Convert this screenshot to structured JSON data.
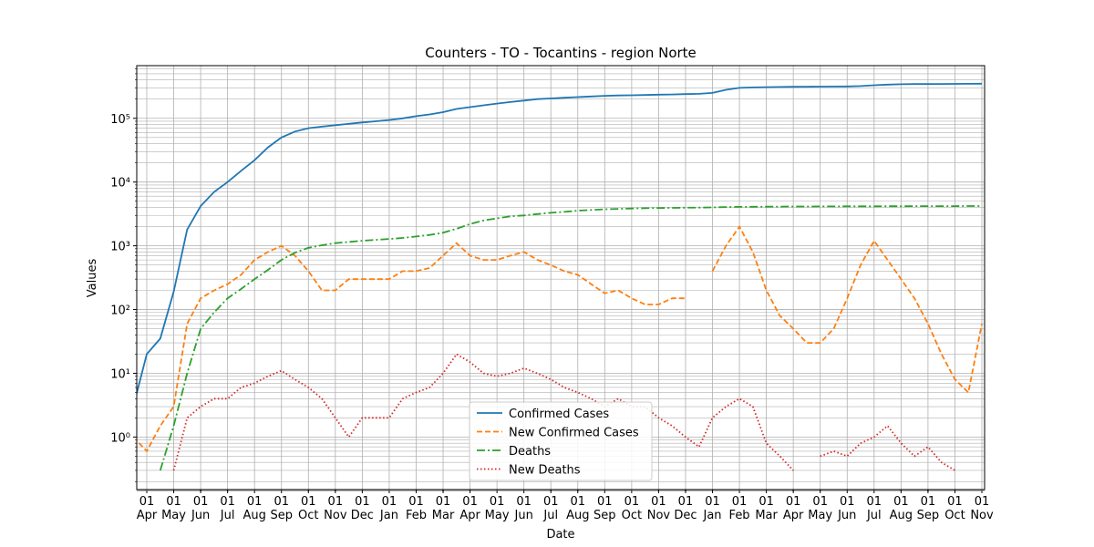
{
  "chart_data": {
    "type": "line",
    "title": "Counters - TO - Tocantins - region Norte",
    "xlabel": "Date",
    "ylabel": "Values",
    "log_y": true,
    "grid": true,
    "minor_grid": true,
    "legend": "lower center",
    "ylim": [
      0.15,
      670000
    ],
    "yticks": [
      {
        "value": 1,
        "label": "10⁰"
      },
      {
        "value": 10,
        "label": "10¹"
      },
      {
        "value": 100,
        "label": "10²"
      },
      {
        "value": 1000,
        "label": "10³"
      },
      {
        "value": 10000,
        "label": "10⁴"
      },
      {
        "value": 100000,
        "label": "10⁵"
      }
    ],
    "categories": [
      null,
      "01\nApr",
      null,
      "01\nMay",
      null,
      "01\nJun",
      null,
      "01\nJul",
      null,
      "01\nAug",
      null,
      "01\nSep",
      null,
      "01\nOct",
      null,
      "01\nNov",
      null,
      "01\nDec",
      null,
      "01\nJan",
      null,
      "01\nFeb",
      null,
      "01\nMar",
      null,
      "01\nApr",
      null,
      "01\nMay",
      null,
      "01\nJun",
      null,
      "01\nJul",
      null,
      "01\nAug",
      null,
      "01\nSep",
      null,
      "01\nOct",
      null,
      "01\nNov",
      null,
      "01\nDec",
      null,
      "01\nJan",
      null,
      "01\nFeb",
      null,
      "01\nMar",
      null,
      "01\nApr",
      null,
      "01\nMay",
      null,
      "01\nJun",
      null,
      "01\nJul",
      null,
      "01\nAug",
      null,
      "01\nSep",
      null,
      "01\nOct",
      null,
      "01\nNov"
    ],
    "series": [
      {
        "name": "Confirmed Cases",
        "color": "#1f77b4",
        "linestyle": "solid",
        "values": [
          3,
          20,
          35,
          190,
          1800,
          4200,
          7000,
          10000,
          15000,
          22000,
          35000,
          50000,
          62000,
          70000,
          74000,
          78000,
          82000,
          86000,
          90000,
          94000,
          100000,
          108000,
          115000,
          125000,
          140000,
          150000,
          160000,
          170000,
          180000,
          190000,
          200000,
          205000,
          210000,
          215000,
          220000,
          225000,
          228000,
          230000,
          232000,
          235000,
          237000,
          240000,
          242000,
          250000,
          280000,
          300000,
          305000,
          308000,
          310000,
          312000,
          313000,
          314000,
          315000,
          316000,
          320000,
          330000,
          338000,
          342000,
          344000,
          345000,
          346000,
          347000,
          348000,
          349000
        ]
      },
      {
        "name": "New Confirmed Cases",
        "color": "#ff7f0e",
        "linestyle": "dashed",
        "values": [
          1,
          0.6,
          1.5,
          3,
          60,
          150,
          200,
          250,
          350,
          600,
          800,
          1000,
          700,
          400,
          200,
          200,
          300,
          300,
          300,
          300,
          400,
          400,
          450,
          700,
          1100,
          700,
          600,
          600,
          700,
          800,
          600,
          500,
          400,
          350,
          250,
          180,
          200,
          150,
          120,
          120,
          150,
          150,
          null,
          400,
          1000,
          2000,
          800,
          200,
          80,
          50,
          30,
          30,
          50,
          150,
          500,
          1200,
          600,
          300,
          150,
          60,
          20,
          8,
          5,
          60
        ]
      },
      {
        "name": "Deaths",
        "color": "#2ca02c",
        "linestyle": "dashdot",
        "values": [
          null,
          null,
          0.3,
          1.5,
          10,
          50,
          90,
          150,
          210,
          300,
          420,
          600,
          780,
          930,
          1020,
          1100,
          1150,
          1200,
          1240,
          1280,
          1330,
          1400,
          1480,
          1600,
          1850,
          2200,
          2500,
          2700,
          2900,
          3000,
          3150,
          3300,
          3400,
          3550,
          3650,
          3750,
          3800,
          3850,
          3900,
          3920,
          3940,
          3960,
          3980,
          4000,
          4050,
          4080,
          4100,
          4110,
          4120,
          4130,
          4140,
          4150,
          4155,
          4160,
          4165,
          4170,
          4175,
          4180,
          4185,
          4190,
          4192,
          4195,
          4198,
          4200
        ]
      },
      {
        "name": "New Deaths",
        "color": "#d62728",
        "linestyle": "dotted",
        "values": [
          null,
          null,
          null,
          0.3,
          2,
          3,
          4,
          4,
          6,
          7,
          9,
          11,
          8,
          6,
          4,
          2,
          1,
          2,
          2,
          2,
          4,
          5,
          6,
          10,
          20,
          15,
          10,
          9,
          10,
          12,
          10,
          8,
          6,
          5,
          4,
          3,
          4,
          3,
          3,
          2,
          1.5,
          1,
          0.7,
          2,
          3,
          4,
          3,
          0.8,
          0.5,
          0.3,
          null,
          0.5,
          0.6,
          0.5,
          0.8,
          1,
          1.5,
          0.8,
          0.5,
          0.7,
          0.4,
          0.3,
          null,
          null
        ]
      }
    ]
  }
}
